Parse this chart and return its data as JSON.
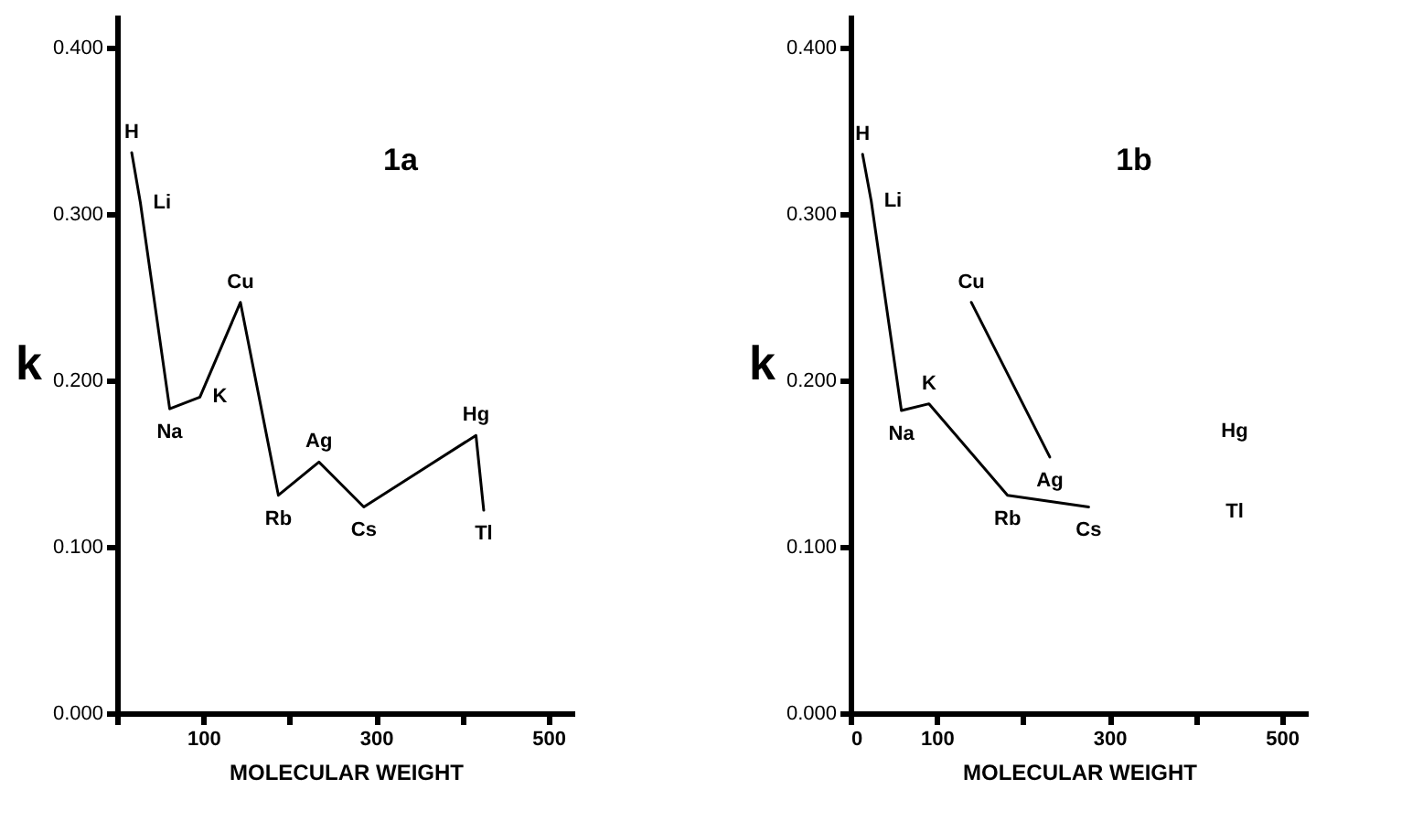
{
  "chart_data": [
    {
      "type": "line",
      "xlabel": "MOLECULAR WEIGHT",
      "ylabel": "k",
      "xlim": [
        0,
        530
      ],
      "ylim": [
        0,
        0.42
      ],
      "xticks": [
        {
          "value": 0,
          "label": null
        },
        100,
        {
          "value": 200,
          "label": null
        },
        300,
        {
          "value": 400,
          "label": null
        },
        500
      ],
      "yticks": [
        {
          "value": 0,
          "label": "0.000"
        },
        {
          "value": 0.1,
          "label": "0.100"
        },
        {
          "value": 0.2,
          "label": "0.200"
        },
        {
          "value": 0.3,
          "label": "0.300"
        },
        {
          "value": 0.4,
          "label": "0.400"
        }
      ],
      "grid": false,
      "marker": "none",
      "series": [
        {
          "color": "#000000",
          "x": [
            17,
            27,
            61,
            96,
            143,
            187,
            234,
            286,
            416,
            425
          ],
          "values": [
            0.337,
            0.307,
            0.183,
            0.19,
            0.247,
            0.131,
            0.151,
            0.124,
            0.167,
            0.122
          ]
        }
      ],
      "annotations": [
        "1a",
        {
          "text": "H",
          "x": 17,
          "y": 0.337
        },
        {
          "text": "Li",
          "x": 27,
          "y": 0.307
        },
        {
          "text": "Na",
          "x": 61,
          "y": 0.183
        },
        {
          "text": "K",
          "x": 96,
          "y": 0.19
        },
        {
          "text": "Cu",
          "x": 143,
          "y": 0.247
        },
        {
          "text": "Rb",
          "x": 187,
          "y": 0.131
        },
        {
          "text": "Ag",
          "x": 234,
          "y": 0.151
        },
        {
          "text": "Cs",
          "x": 286,
          "y": 0.124
        },
        {
          "text": "Hg",
          "x": 416,
          "y": 0.167
        },
        {
          "text": "Tl",
          "x": 425,
          "y": 0.122
        }
      ]
    },
    {
      "type": "line",
      "xlabel": "MOLECULAR WEIGHT",
      "ylabel": "k",
      "xlim": [
        0,
        530
      ],
      "ylim": [
        0,
        0.42
      ],
      "xticks": [
        0,
        100,
        {
          "value": 200,
          "label": null
        },
        300,
        {
          "value": 400,
          "label": null
        },
        500
      ],
      "yticks": [
        {
          "value": 0,
          "label": "0.000"
        },
        {
          "value": 0.1,
          "label": "0.100"
        },
        {
          "value": 0.2,
          "label": "0.200"
        },
        {
          "value": 0.3,
          "label": "0.300"
        },
        {
          "value": 0.4,
          "label": "0.400"
        }
      ],
      "grid": false,
      "marker": "none",
      "series": [
        {
          "color": "#000000",
          "x": [
            14,
            24,
            59,
            91,
            182,
            276
          ],
          "values": [
            0.336,
            0.308,
            0.182,
            0.186,
            0.131,
            0.124
          ]
        },
        {
          "color": "#000000",
          "x": [
            140,
            231
          ],
          "values": [
            0.247,
            0.154
          ]
        }
      ],
      "annotations": [
        "1b",
        {
          "text": "H",
          "x": 14,
          "y": 0.336
        },
        {
          "text": "Li",
          "x": 24,
          "y": 0.308
        },
        {
          "text": "Na",
          "x": 59,
          "y": 0.182
        },
        {
          "text": "K",
          "x": 91,
          "y": 0.186
        },
        {
          "text": "Cu",
          "x": 140,
          "y": 0.247
        },
        {
          "text": "Rb",
          "x": 182,
          "y": 0.131
        },
        {
          "text": "Ag",
          "x": 231,
          "y": 0.154
        },
        {
          "text": "Cs",
          "x": 276,
          "y": 0.124
        },
        "Hg",
        "Tl"
      ]
    }
  ]
}
